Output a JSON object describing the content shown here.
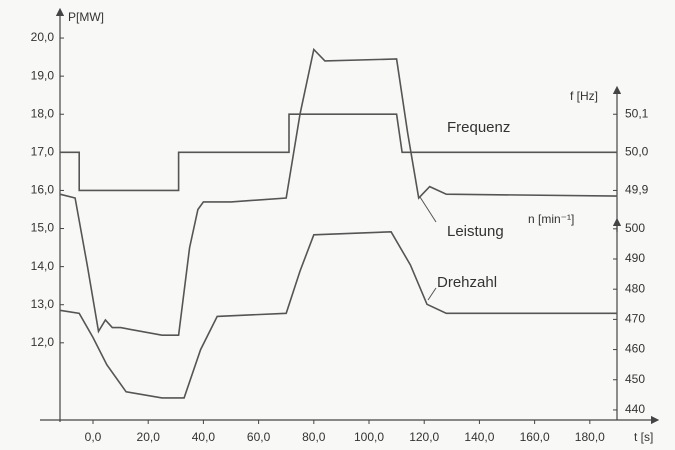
{
  "chart_data": {
    "type": "line",
    "xlabel": "t [s]",
    "ylabel": "P[MW]",
    "y2label": "f [Hz]",
    "y3label": "n [min⁻¹]",
    "xlim": [
      -19.2,
      201.8
    ],
    "xticks": [
      {
        "value": 0,
        "label": "0,0"
      },
      {
        "value": 20,
        "label": "20,0"
      },
      {
        "value": 40,
        "label": "40,0"
      },
      {
        "value": 60,
        "label": "60,0"
      },
      {
        "value": 80,
        "label": "80,0"
      },
      {
        "value": 100,
        "label": "100,0"
      },
      {
        "value": 120,
        "label": "120,0"
      },
      {
        "value": 140,
        "label": "140,0"
      },
      {
        "value": 160,
        "label": "160,0"
      },
      {
        "value": 180,
        "label": "180,0"
      }
    ],
    "ylim": [
      10,
      20.5
    ],
    "yticks": [
      {
        "value": 12,
        "label": "12,0"
      },
      {
        "value": 13,
        "label": "13,0"
      },
      {
        "value": 14,
        "label": "14,0"
      },
      {
        "value": 15,
        "label": "15,0"
      },
      {
        "value": 16,
        "label": "16,0"
      },
      {
        "value": 17,
        "label": "17,0"
      },
      {
        "value": 18,
        "label": "18,0"
      },
      {
        "value": 19,
        "label": "19,0"
      },
      {
        "value": 20,
        "label": "20,0"
      }
    ],
    "y2lim": [
      49.3,
      50.35
    ],
    "y2ticks": [
      {
        "value": 49.9,
        "label": "49,9"
      },
      {
        "value": 50.0,
        "label": "50,0"
      },
      {
        "value": 50.1,
        "label": "50,1"
      }
    ],
    "y3lim": [
      437,
      569.5
    ],
    "y3ticks": [
      440,
      450,
      460,
      470,
      480,
      490,
      500
    ],
    "series": [
      {
        "name": "Frequenz",
        "axis": "y2",
        "color": "#555555",
        "x": [
          -12,
          -5,
          -5,
          31,
          31,
          71,
          71,
          110,
          112,
          190
        ],
        "values": [
          50.0,
          50.0,
          49.9,
          49.9,
          50.0,
          50.0,
          50.1,
          50.1,
          50.0,
          50.0
        ]
      },
      {
        "name": "Leistung",
        "axis": "y",
        "color": "#555555",
        "x": [
          -12,
          -6.5,
          -2,
          2,
          4.5,
          7,
          10,
          25,
          31,
          35,
          38,
          40,
          50,
          70,
          75,
          80,
          84,
          110,
          114,
          118,
          122,
          128,
          190
        ],
        "values": [
          15.9,
          15.8,
          14.0,
          12.3,
          12.6,
          12.4,
          12.4,
          12.2,
          12.2,
          14.5,
          15.5,
          15.7,
          15.7,
          15.8,
          18.0,
          19.7,
          19.4,
          19.45,
          17.5,
          15.8,
          16.1,
          15.9,
          15.85
        ]
      },
      {
        "name": "Drehzahl",
        "axis": "y3",
        "color": "#555555",
        "x": [
          -12,
          -5,
          0,
          5,
          12,
          25,
          33,
          39,
          45,
          70,
          75,
          80,
          108,
          115,
          121,
          128,
          190
        ],
        "values": [
          473,
          472,
          464,
          455,
          446,
          444,
          444,
          460,
          471,
          472,
          486,
          498,
          499,
          488,
          475,
          472,
          472
        ]
      }
    ]
  }
}
